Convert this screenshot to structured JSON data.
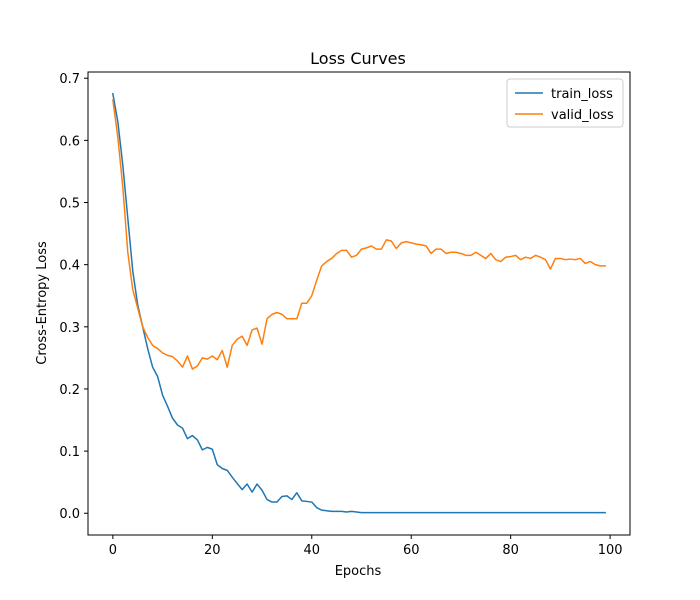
{
  "chart_data": {
    "type": "line",
    "title": "Loss Curves",
    "xlabel": "Epochs",
    "ylabel": "Cross-Entropy Loss",
    "xlim": [
      -5,
      104
    ],
    "ylim": [
      -0.035,
      0.71
    ],
    "xticks": [
      0,
      20,
      40,
      60,
      80,
      100
    ],
    "yticks": [
      0.0,
      0.1,
      0.2,
      0.3,
      0.4,
      0.5,
      0.6,
      0.7
    ],
    "xtick_labels": [
      "0",
      "20",
      "40",
      "60",
      "80",
      "100"
    ],
    "ytick_labels": [
      "0.0",
      "0.1",
      "0.2",
      "0.3",
      "0.4",
      "0.5",
      "0.6",
      "0.7"
    ],
    "grid": false,
    "legend_position": "top-right",
    "series": [
      {
        "name": "train_loss",
        "color": "#1f77b4",
        "values": [
          0.675,
          0.63,
          0.56,
          0.475,
          0.39,
          0.335,
          0.3,
          0.265,
          0.235,
          0.22,
          0.19,
          0.172,
          0.153,
          0.142,
          0.137,
          0.12,
          0.125,
          0.118,
          0.102,
          0.106,
          0.103,
          0.078,
          0.072,
          0.069,
          0.058,
          0.048,
          0.038,
          0.047,
          0.034,
          0.047,
          0.037,
          0.022,
          0.018,
          0.018,
          0.027,
          0.028,
          0.022,
          0.033,
          0.02,
          0.019,
          0.018,
          0.009,
          0.005,
          0.004,
          0.003,
          0.003,
          0.003,
          0.002,
          0.003,
          0.002,
          0.001,
          0.001,
          0.001,
          0.001,
          0.001,
          0.001,
          0.001,
          0.001,
          0.001,
          0.001,
          0.001,
          0.001,
          0.001,
          0.001,
          0.001,
          0.001,
          0.001,
          0.001,
          0.001,
          0.001,
          0.001,
          0.001,
          0.001,
          0.001,
          0.001,
          0.001,
          0.001,
          0.001,
          0.001,
          0.001,
          0.001,
          0.001,
          0.001,
          0.001,
          0.001,
          0.001,
          0.001,
          0.001,
          0.001,
          0.001,
          0.001,
          0.001,
          0.001,
          0.001,
          0.001,
          0.001,
          0.001,
          0.001,
          0.001,
          0.001
        ]
      },
      {
        "name": "valid_loss",
        "color": "#ff7f0e",
        "values": [
          0.665,
          0.605,
          0.525,
          0.42,
          0.36,
          0.33,
          0.3,
          0.283,
          0.27,
          0.265,
          0.258,
          0.254,
          0.252,
          0.245,
          0.235,
          0.253,
          0.232,
          0.237,
          0.25,
          0.248,
          0.253,
          0.247,
          0.262,
          0.235,
          0.27,
          0.28,
          0.285,
          0.27,
          0.295,
          0.298,
          0.272,
          0.313,
          0.32,
          0.323,
          0.32,
          0.313,
          0.313,
          0.313,
          0.338,
          0.338,
          0.35,
          0.375,
          0.398,
          0.405,
          0.41,
          0.418,
          0.423,
          0.423,
          0.412,
          0.415,
          0.425,
          0.427,
          0.43,
          0.425,
          0.425,
          0.44,
          0.438,
          0.426,
          0.435,
          0.437,
          0.435,
          0.433,
          0.432,
          0.43,
          0.418,
          0.425,
          0.425,
          0.418,
          0.42,
          0.42,
          0.418,
          0.415,
          0.415,
          0.42,
          0.415,
          0.41,
          0.418,
          0.408,
          0.405,
          0.412,
          0.413,
          0.415,
          0.408,
          0.412,
          0.41,
          0.415,
          0.412,
          0.408,
          0.393,
          0.41,
          0.41,
          0.408,
          0.409,
          0.408,
          0.41,
          0.402,
          0.405,
          0.4,
          0.398,
          0.398
        ]
      }
    ]
  }
}
